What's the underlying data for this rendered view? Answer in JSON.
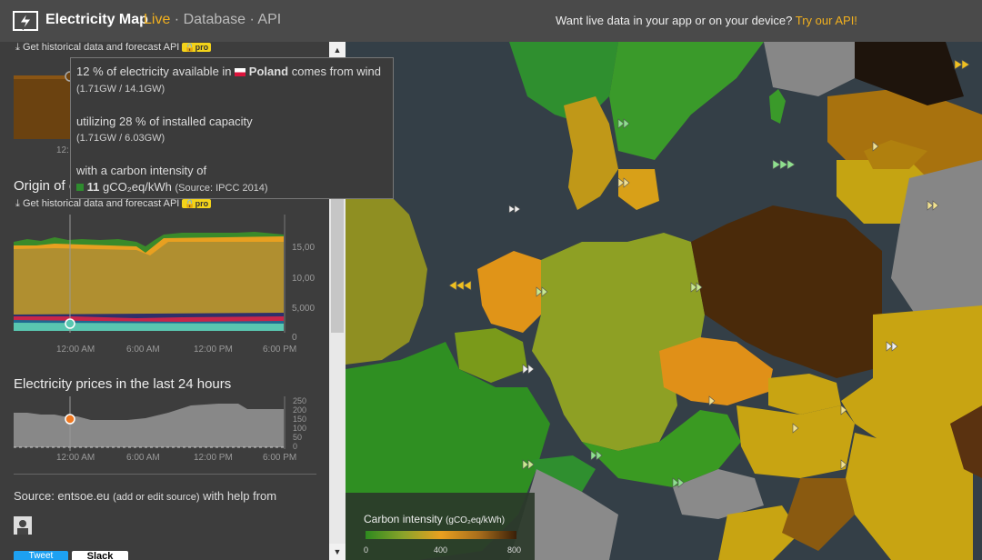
{
  "header": {
    "brand": "Electricity Map",
    "nav_live": "Live",
    "nav_sep1": " · ",
    "nav_database": "Database",
    "nav_sep2": " · ",
    "nav_api": "API",
    "promo_text": "Want live data in your app or on your device? ",
    "promo_link": "Try our API!"
  },
  "sidebar": {
    "hist_link_1": "Get historical data and forecast API",
    "pro_label_1": "pro",
    "hist_link_2": "Get historical data and forecast API",
    "pro_label_2": "pro",
    "origin_title": "Origin of e",
    "chart1_yticks": [
      "15,00",
      "10,00",
      "5,000",
      "0"
    ],
    "chart1_xticks": [
      "12:00 AM",
      "6:00 AM",
      "12:00 PM",
      "6:00 PM"
    ],
    "top_chart_xtick": "12:",
    "prices_title": "Electricity prices in the last 24 hours",
    "chart2_yticks": [
      "250",
      "200",
      "150",
      "100",
      "50",
      "0"
    ],
    "chart2_xticks": [
      "12:00 AM",
      "6:00 AM",
      "12:00 PM",
      "6:00 PM"
    ],
    "source_prefix": "Source: ",
    "source_name": "entsoe.eu",
    "source_edit": "(add or edit source)",
    "source_suffix": " with help from",
    "tweet_label": "Tweet",
    "slack_label": "Slack"
  },
  "tooltip": {
    "line1_pre": "12 % of electricity available in ",
    "country": "Poland",
    "line1_post": " comes from wind",
    "line1_detail": "(1.71GW / 14.1GW)",
    "line2": "utilizing 28 % of installed capacity",
    "line2_detail": "(1.71GW / 6.03GW)",
    "line3": "with a carbon intensity of",
    "intensity_value": "11",
    "intensity_unit": "gCO₂eq/kWh",
    "intensity_source": "(Source: IPCC 2014)"
  },
  "legend": {
    "title": "Carbon intensity",
    "unit": "(gCO₂eq/kWh)",
    "ticks": [
      "0",
      "400",
      "800"
    ]
  },
  "colors": {
    "accent": "#f2b01e",
    "pro_badge": "#f3d31a",
    "header_bg": "#4a4a4a",
    "sidebar_bg": "#3d3d3d",
    "sea": "#343f47"
  },
  "icons": [
    "logo-bolt-icon",
    "download-icon",
    "lock-icon",
    "scroll-up-icon",
    "scroll-down-icon",
    "wind-arrow-icon"
  ]
}
